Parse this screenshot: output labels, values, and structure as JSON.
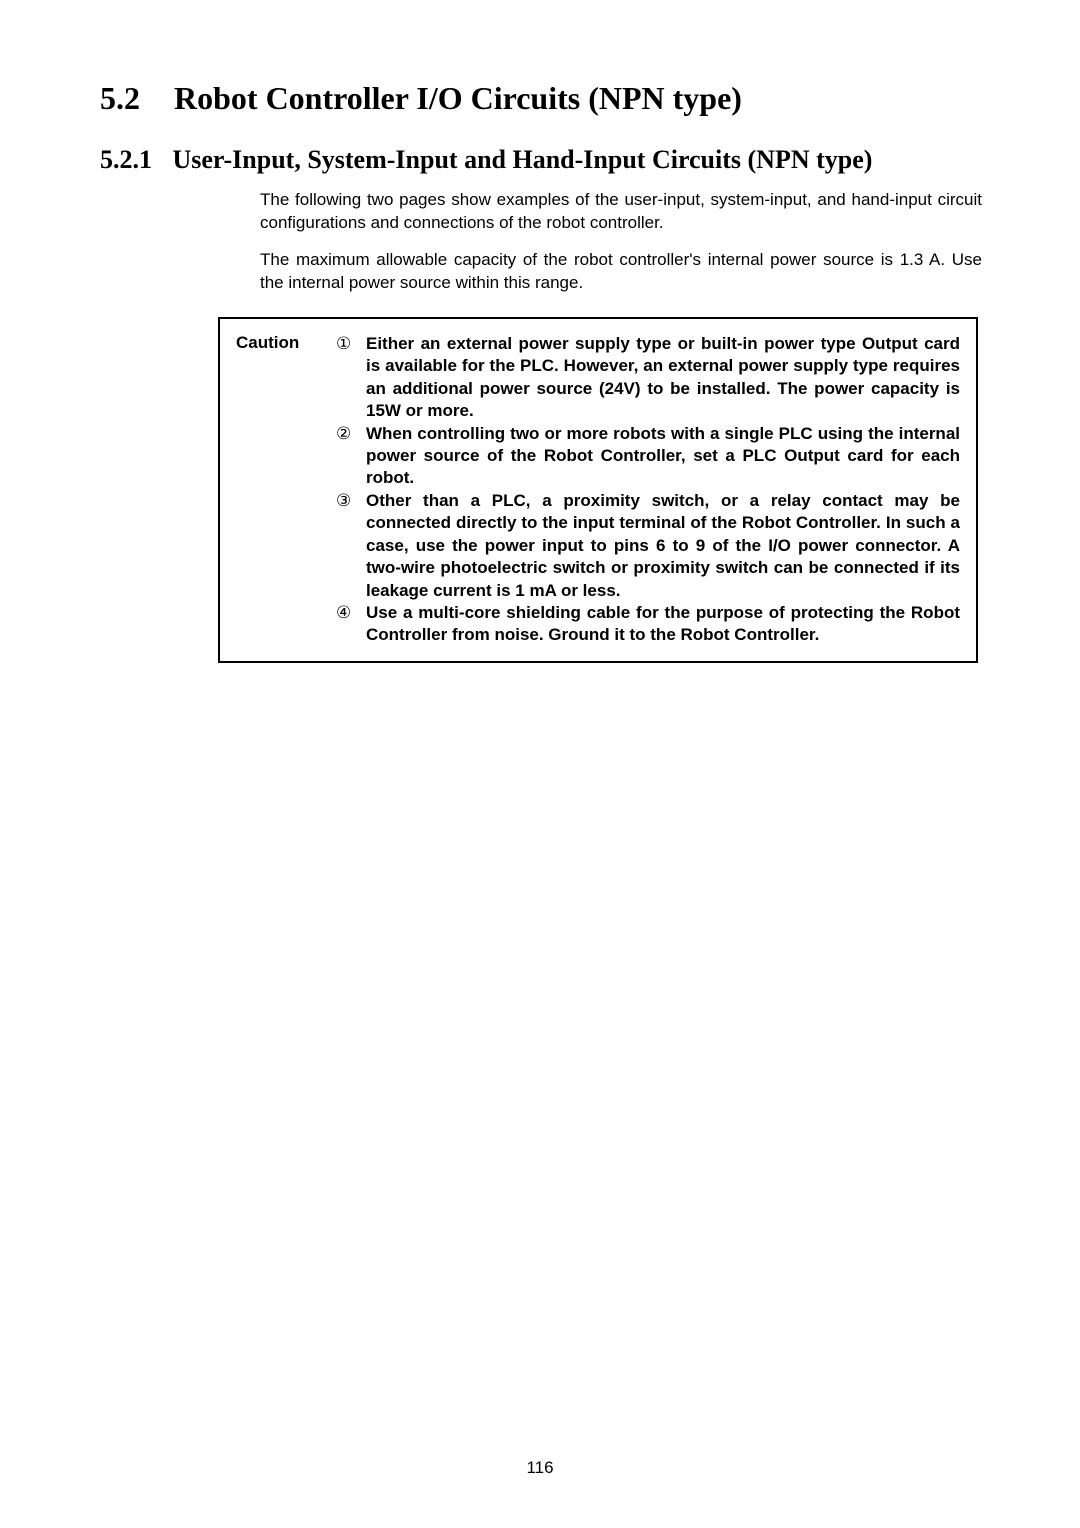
{
  "section": {
    "number": "5.2",
    "title": "Robot Controller I/O Circuits (NPN type)"
  },
  "subsection": {
    "number": "5.2.1",
    "title": "User-Input, System-Input and Hand-Input Circuits (NPN type)"
  },
  "paragraphs": [
    "The following two pages show examples of the user-input, system-input, and hand-input circuit configurations and connections of the robot controller.",
    "The maximum allowable capacity of the robot controller's internal power source is 1.3 A. Use the internal power source within this range."
  ],
  "caution": {
    "label": "Caution",
    "items": [
      {
        "marker": "①",
        "text": "Either an external power supply type or built-in power type Output card is available for the PLC. However, an external power supply type requires an additional power source (24V) to be installed. The power capacity is 15W or more."
      },
      {
        "marker": "②",
        "text": "When controlling two or more robots with a single PLC using the internal power source of the Robot Controller, set a PLC Output card for each robot."
      },
      {
        "marker": "③",
        "text": "Other than a PLC, a proximity switch, or a relay contact may be connected directly to the input terminal of the Robot Controller. In such a case, use the power input to pins 6 to 9 of the I/O power connector. A two-wire photoelectric switch or proximity switch can be connected if its leakage current is 1 mA or less."
      },
      {
        "marker": "④",
        "text": "Use a multi-core shielding cable for the purpose of protecting the Robot Controller from noise. Ground it to the Robot Controller."
      }
    ]
  },
  "pageNumber": "116"
}
